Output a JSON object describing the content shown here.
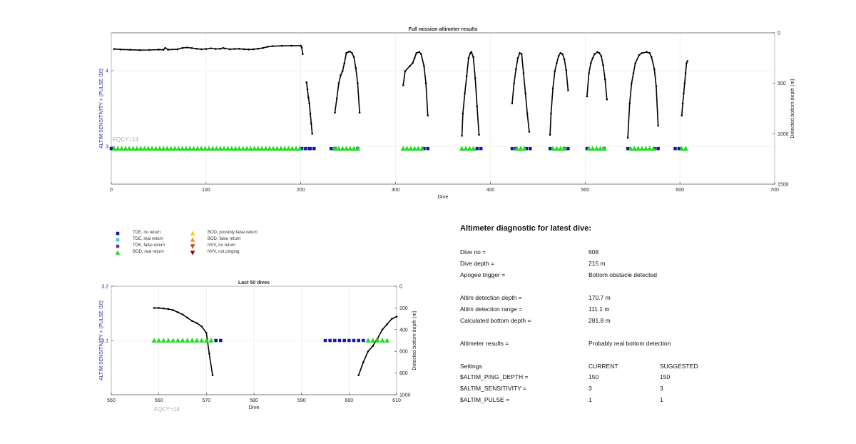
{
  "chart_data": [
    {
      "type": "line",
      "title": "Full mission altimeter results",
      "xlabel": "Dive",
      "ylabel_left": "ALTIM SENSITIVITY + (PULSE /10)",
      "ylabel_right": "Detected bottom depth (m)",
      "xlim": [
        0,
        700
      ],
      "xticks": [
        "0",
        "100",
        "200",
        "300",
        "400",
        "500",
        "600",
        "700"
      ],
      "ylim_left": [
        2.5,
        4.5
      ],
      "yticks_left": [
        "3",
        "4"
      ],
      "ylim_right": [
        1500,
        0
      ],
      "yticks_right": [
        "0",
        "500",
        "1000",
        "1500"
      ],
      "annotation": "FQCY=14",
      "grid": true,
      "series": [
        {
          "name": "Detected bottom depth",
          "color": "#000000",
          "segments": [
            [
              [
                3,
                160
              ],
              [
                10,
                165
              ],
              [
                20,
                168
              ],
              [
                30,
                171
              ],
              [
                40,
                170
              ],
              [
                50,
                166
              ],
              [
                55,
                168
              ],
              [
                57,
                150
              ],
              [
                60,
                167
              ],
              [
                70,
                163
              ],
              [
                75,
                150
              ],
              [
                80,
                145
              ],
              [
                85,
                151
              ],
              [
                90,
                158
              ],
              [
                95,
                163
              ],
              [
                100,
                160
              ],
              [
                105,
                153
              ],
              [
                110,
                160
              ],
              [
                115,
                158
              ],
              [
                118,
                150
              ],
              [
                120,
                155
              ],
              [
                125,
                163
              ],
              [
                130,
                160
              ],
              [
                135,
                158
              ],
              [
                140,
                162
              ],
              [
                145,
                165
              ],
              [
                150,
                163
              ],
              [
                155,
                157
              ],
              [
                160,
                150
              ],
              [
                165,
                138
              ],
              [
                170,
                132
              ],
              [
                180,
                129
              ],
              [
                190,
                128
              ],
              [
                200,
                128
              ],
              [
                201,
                145
              ],
              [
                202,
                210
              ]
            ],
            [
              [
                206,
                490
              ],
              [
                207,
                560
              ],
              [
                208,
                640
              ],
              [
                209,
                700
              ],
              [
                210,
                800
              ],
              [
                211,
                900
              ],
              [
                212,
                1000
              ]
            ],
            [
              [
                236,
                790
              ],
              [
                238,
                650
              ],
              [
                240,
                500
              ],
              [
                242,
                420
              ],
              [
                244,
                380
              ],
              [
                246,
                300
              ],
              [
                248,
                200
              ],
              [
                250,
                190
              ],
              [
                252,
                185
              ],
              [
                254,
                200
              ],
              [
                256,
                240
              ],
              [
                258,
                350
              ],
              [
                260,
                500
              ],
              [
                262,
                790
              ]
            ],
            [
              [
                308,
                520
              ],
              [
                310,
                380
              ],
              [
                315,
                330
              ],
              [
                318,
                300
              ],
              [
                320,
                250
              ],
              [
                322,
                200
              ],
              [
                325,
                190
              ],
              [
                327,
                210
              ],
              [
                330,
                330
              ],
              [
                332,
                500
              ],
              [
                334,
                820
              ]
            ],
            [
              [
                370,
                1020
              ],
              [
                371,
                800
              ],
              [
                373,
                600
              ],
              [
                375,
                430
              ],
              [
                377,
                250
              ],
              [
                379,
                200
              ],
              [
                380,
                190
              ],
              [
                382,
                240
              ],
              [
                384,
                450
              ],
              [
                386,
                730
              ],
              [
                388,
                1010
              ]
            ],
            [
              [
                423,
                700
              ],
              [
                425,
                500
              ],
              [
                427,
                360
              ],
              [
                429,
                250
              ],
              [
                431,
                200
              ],
              [
                433,
                210
              ],
              [
                435,
                400
              ],
              [
                437,
                600
              ],
              [
                439,
                800
              ],
              [
                441,
                980
              ]
            ],
            [
              [
                463,
                1010
              ],
              [
                464,
                800
              ],
              [
                466,
                550
              ],
              [
                468,
                380
              ],
              [
                470,
                300
              ],
              [
                472,
                230
              ],
              [
                474,
                200
              ],
              [
                476,
                210
              ],
              [
                478,
                260
              ],
              [
                480,
                370
              ],
              [
                482,
                570
              ]
            ],
            [
              [
                502,
                630
              ],
              [
                504,
                400
              ],
              [
                506,
                300
              ],
              [
                508,
                250
              ],
              [
                510,
                210
              ],
              [
                513,
                190
              ],
              [
                515,
                200
              ],
              [
                517,
                230
              ],
              [
                519,
                320
              ],
              [
                521,
                460
              ],
              [
                523,
                660
              ]
            ],
            [
              [
                545,
                1040
              ],
              [
                547,
                700
              ],
              [
                549,
                500
              ],
              [
                551,
                400
              ],
              [
                553,
                300
              ],
              [
                557,
                220
              ],
              [
                560,
                200
              ],
              [
                565,
                190
              ],
              [
                568,
                200
              ],
              [
                570,
                240
              ],
              [
                573,
                360
              ],
              [
                575,
                530
              ],
              [
                577,
                920
              ]
            ],
            [
              [
                602,
                820
              ],
              [
                603,
                700
              ],
              [
                604,
                600
              ],
              [
                605,
                500
              ],
              [
                606,
                400
              ],
              [
                607,
                300
              ],
              [
                608,
                280
              ]
            ]
          ]
        },
        {
          "name": "TDE, no return",
          "color": "#1515b5",
          "ranges": [
            [
              0,
              3
            ],
            [
              201,
              209
            ],
            [
              210,
              215
            ],
            [
              232,
              236
            ],
            [
              260,
              262
            ],
            [
              330,
              334
            ],
            [
              386,
              390
            ],
            [
              423,
              428
            ],
            [
              438,
              444
            ],
            [
              463,
              466
            ],
            [
              478,
              484
            ],
            [
              502,
              504
            ],
            [
              520,
              523
            ],
            [
              545,
              548
            ],
            [
              573,
              577
            ],
            [
              595,
              602
            ]
          ],
          "y": 2.97
        },
        {
          "name": "BOD, real return",
          "color": "#22dd22",
          "ranges": [
            [
              3,
              200
            ],
            [
              236,
              260
            ],
            [
              308,
              330
            ],
            [
              370,
              385
            ],
            [
              428,
              437
            ],
            [
              466,
              478
            ],
            [
              504,
              520
            ],
            [
              548,
              573
            ],
            [
              602,
              608
            ]
          ],
          "y": 2.97
        }
      ]
    },
    {
      "type": "line",
      "title": "Last 50 dives",
      "xlabel": "Dive",
      "ylabel_left": "ALTIM SENSITIVITY + (PULSE /10)",
      "ylabel_right": "Detected bottom depth (m)",
      "xlim": [
        550,
        610
      ],
      "xticks": [
        "550",
        "560",
        "570",
        "580",
        "590",
        "600",
        "610"
      ],
      "ylim_left": [
        3.0,
        3.2
      ],
      "yticks_left": [
        "3.1",
        "3.2"
      ],
      "ylim_right": [
        1000,
        0
      ],
      "yticks_right": [
        "0",
        "200",
        "400",
        "600",
        "800",
        "1000"
      ],
      "annotation": "FQCY=14",
      "grid": true,
      "series": [
        {
          "name": "Detected bottom depth",
          "color": "#000000",
          "segments": [
            [
              [
                559,
                200
              ],
              [
                560,
                200
              ],
              [
                561,
                205
              ],
              [
                562,
                210
              ],
              [
                563,
                220
              ],
              [
                564,
                240
              ],
              [
                565,
                260
              ],
              [
                566,
                290
              ],
              [
                567,
                320
              ],
              [
                568,
                340
              ],
              [
                569,
                370
              ],
              [
                570,
                430
              ],
              [
                570.6,
                620
              ],
              [
                571.3,
                820
              ]
            ],
            [
              [
                602,
                820
              ],
              [
                603,
                700
              ],
              [
                604,
                600
              ],
              [
                605,
                550
              ],
              [
                606,
                480
              ],
              [
                607,
                400
              ],
              [
                608,
                350
              ],
              [
                609,
                300
              ],
              [
                610,
                280
              ]
            ]
          ]
        },
        {
          "name": "BOD, real return",
          "color": "#22dd22",
          "points_x": [
            559,
            560,
            561,
            562,
            563,
            564,
            565,
            566,
            567,
            568,
            569,
            570,
            571,
            604,
            605,
            606,
            607,
            608
          ],
          "y": 3.1
        },
        {
          "name": "TDE, no return",
          "color": "#1515b5",
          "points_x": [
            572,
            573,
            595,
            596,
            597,
            598,
            599,
            600,
            601,
            602,
            603
          ],
          "y": 3.1
        }
      ]
    }
  ],
  "legend": [
    {
      "label": "TDE, no return",
      "marker": "square",
      "color": "#1515b5"
    },
    {
      "label": "TDE, real return",
      "marker": "square",
      "color": "#33c7e8"
    },
    {
      "label": "TDE, false return",
      "marker": "square",
      "color": "#6e2fb5"
    },
    {
      "label": "BOD, real return",
      "marker": "triangle-up",
      "color": "#22dd22"
    },
    {
      "label": "BOD, possibly false return",
      "marker": "triangle-up",
      "color": "#f5d000"
    },
    {
      "label": "BOD, false return",
      "marker": "triangle-up",
      "color": "#f29a0c"
    },
    {
      "label": "NVV, no return",
      "marker": "triangle-down",
      "color": "#d43a0f"
    },
    {
      "label": "NVV, not pinging",
      "marker": "triangle-down",
      "color": "#7a1010"
    }
  ],
  "diagnostic": {
    "title": "Altimeter diagnostic for latest dive:",
    "dive_no_label": "Dive no =",
    "dive_no_value": "608",
    "dive_depth_label": "Dive depth =",
    "dive_depth_value": "215 m",
    "apogee_label": "Apogee trigger =",
    "apogee_value": "Bottom obstacle detected",
    "det_depth_label": "Altim detection depth =",
    "det_depth_value": "170.7 m",
    "det_range_label": "Altim detection range =",
    "det_range_value": "111.1 m",
    "calc_depth_label": "Calculated bottom depth =",
    "calc_depth_value": "281.8 m",
    "results_label": "Altimeter results =",
    "results_value": "Probably real bottom detection",
    "settings_label": "Settings",
    "current_label": "CURRENT",
    "suggested_label": "SUGGESTED",
    "settings": [
      {
        "name": "$ALTIM_PING_DEPTH =",
        "current": "150",
        "suggested": "150"
      },
      {
        "name": "$ALTIM_SENSITIVITY =",
        "current": "3",
        "suggested": "3"
      },
      {
        "name": "$ALTIM_PULSE =",
        "current": "1",
        "suggested": "1"
      }
    ]
  }
}
